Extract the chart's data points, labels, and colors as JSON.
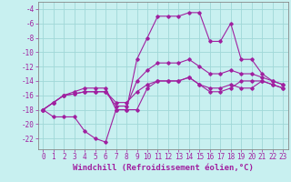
{
  "background_color": "#c8f0f0",
  "grid_color": "#a0d8d8",
  "line_color": "#a020a0",
  "xlabel": "Windchill (Refroidissement éolien,°C)",
  "xlim": [
    -0.5,
    23.5
  ],
  "ylim": [
    -23.5,
    -3.0
  ],
  "xticks": [
    0,
    1,
    2,
    3,
    4,
    5,
    6,
    7,
    8,
    9,
    10,
    11,
    12,
    13,
    14,
    15,
    16,
    17,
    18,
    19,
    20,
    21,
    22,
    23
  ],
  "yticks": [
    -4,
    -6,
    -8,
    -10,
    -12,
    -14,
    -16,
    -18,
    -20,
    -22
  ],
  "series": [
    {
      "x": [
        0,
        1,
        2,
        3,
        4,
        5,
        6,
        7,
        8,
        9,
        10,
        11,
        12,
        13,
        14,
        15,
        16,
        17,
        18,
        19,
        20,
        21,
        22,
        23
      ],
      "y": [
        -18,
        -17,
        -16,
        -15.5,
        -15,
        -15,
        -15,
        -18,
        -18,
        -11,
        -8,
        -5,
        -5,
        -5,
        -4.5,
        -4.5,
        -8.5,
        -8.5,
        -6,
        -11,
        -11,
        -13,
        -14,
        -14.5
      ]
    },
    {
      "x": [
        0,
        1,
        2,
        3,
        4,
        5,
        6,
        7,
        8,
        9,
        10,
        11,
        12,
        13,
        14,
        15,
        16,
        17,
        18,
        19,
        20,
        21,
        22,
        23
      ],
      "y": [
        -18,
        -19,
        -19,
        -19,
        -21,
        -22,
        -22.5,
        -18,
        -18,
        -18,
        -15,
        -14,
        -14,
        -14,
        -13.5,
        -14.5,
        -15.5,
        -15.5,
        -15,
        -14,
        -14,
        -14,
        -14.5,
        -15
      ]
    },
    {
      "x": [
        0,
        1,
        2,
        3,
        4,
        5,
        6,
        7,
        8,
        9,
        10,
        11,
        12,
        13,
        14,
        15,
        16,
        17,
        18,
        19,
        20,
        21,
        22,
        23
      ],
      "y": [
        -18,
        -17,
        -16,
        -15.8,
        -15.5,
        -15.5,
        -15.5,
        -17.5,
        -17.5,
        -14,
        -12.5,
        -11.5,
        -11.5,
        -11.5,
        -11,
        -12,
        -13,
        -13,
        -12.5,
        -13,
        -13,
        -13.5,
        -14,
        -14.5
      ]
    },
    {
      "x": [
        0,
        1,
        2,
        3,
        4,
        5,
        6,
        7,
        8,
        9,
        10,
        11,
        12,
        13,
        14,
        15,
        16,
        17,
        18,
        19,
        20,
        21,
        22,
        23
      ],
      "y": [
        -18,
        -17,
        -16,
        -15.8,
        -15.5,
        -15.5,
        -15.5,
        -17,
        -17,
        -15.5,
        -14.5,
        -14,
        -14,
        -14,
        -13.5,
        -14.5,
        -15,
        -15,
        -14.5,
        -15,
        -15,
        -14,
        -14.5,
        -15
      ]
    }
  ],
  "marker": "D",
  "markersize": 1.8,
  "linewidth": 0.8,
  "xlabel_fontsize": 6.5,
  "tick_fontsize": 5.5
}
